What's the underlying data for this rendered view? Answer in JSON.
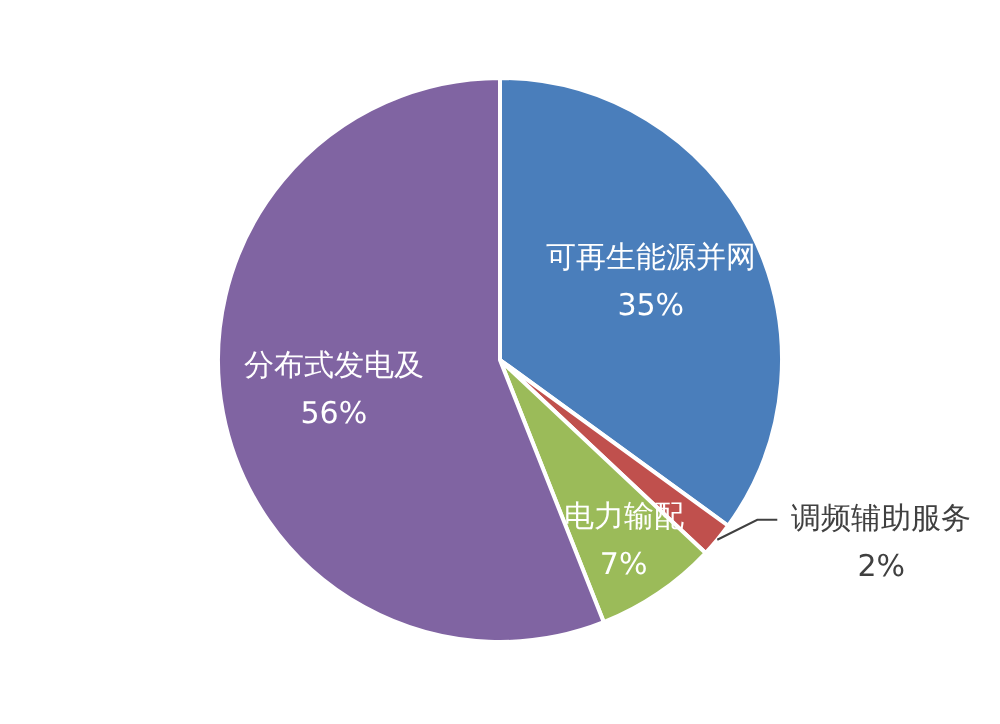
{
  "chart_data": {
    "type": "pie",
    "categories": [
      "可再生能源并网",
      "调频辅助服务",
      "电力输配",
      "分布式发电及"
    ],
    "values": [
      35,
      2,
      7,
      56
    ],
    "value_labels": [
      "35%",
      "2%",
      "7%",
      "56%"
    ],
    "colors": [
      "#4a7ebb",
      "#c0504d",
      "#9bbb59",
      "#8064a2"
    ],
    "legend": false
  }
}
